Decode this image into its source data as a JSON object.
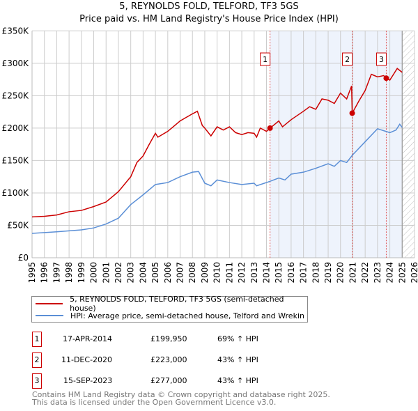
{
  "header": {
    "title": "5, REYNOLDS FOLD, TELFORD, TF3 5GS",
    "subtitle": "Price paid vs. HM Land Registry's House Price Index (HPI)"
  },
  "chart_data": {
    "type": "line",
    "title": "5, REYNOLDS FOLD, TELFORD, TF3 5GS",
    "xlim": [
      1995,
      2026
    ],
    "ylim": [
      0,
      350000
    ],
    "yticks": [
      0,
      50000,
      100000,
      150000,
      200000,
      250000,
      300000,
      350000
    ],
    "ytick_labels": [
      "£0",
      "£50K",
      "£100K",
      "£150K",
      "£200K",
      "£250K",
      "£300K",
      "£350K"
    ],
    "xticks": [
      "1995",
      "1996",
      "1997",
      "1998",
      "1999",
      "2000",
      "2001",
      "2002",
      "2003",
      "2004",
      "2005",
      "2006",
      "2007",
      "2008",
      "2009",
      "2010",
      "2011",
      "2012",
      "2013",
      "2014",
      "2015",
      "2016",
      "2017",
      "2018",
      "2019",
      "2020",
      "2021",
      "2022",
      "2023",
      "2024",
      "2025",
      "2026"
    ],
    "grid": true,
    "shaded_range": [
      2014.29,
      2025
    ],
    "hatched_range": [
      2025,
      2026
    ],
    "series": [
      {
        "name": "5, REYNOLDS FOLD, TELFORD, TF3 5GS (semi-detached house)",
        "color": "#cc0000",
        "points": [
          [
            1995,
            63
          ],
          [
            1996,
            64
          ],
          [
            1997,
            66
          ],
          [
            1998,
            71
          ],
          [
            1999,
            73
          ],
          [
            2000,
            79
          ],
          [
            2001,
            86
          ],
          [
            2002,
            102
          ],
          [
            2003,
            125
          ],
          [
            2003.5,
            147
          ],
          [
            2004,
            157
          ],
          [
            2004.5,
            175
          ],
          [
            2005,
            192
          ],
          [
            2005.2,
            186
          ],
          [
            2006,
            195
          ],
          [
            2007,
            211
          ],
          [
            2008,
            222
          ],
          [
            2008.4,
            226
          ],
          [
            2008.8,
            204
          ],
          [
            2009,
            200
          ],
          [
            2009.5,
            188
          ],
          [
            2010,
            202
          ],
          [
            2010.5,
            197
          ],
          [
            2011,
            202
          ],
          [
            2011.5,
            193
          ],
          [
            2012,
            190
          ],
          [
            2012.5,
            193
          ],
          [
            2013,
            192
          ],
          [
            2013.2,
            186
          ],
          [
            2013.5,
            200
          ],
          [
            2014,
            195
          ],
          [
            2014.29,
            199.95
          ],
          [
            2015,
            211
          ],
          [
            2015.3,
            202
          ],
          [
            2016,
            213
          ],
          [
            2017,
            226
          ],
          [
            2017.5,
            233
          ],
          [
            2018,
            229
          ],
          [
            2018.5,
            245
          ],
          [
            2019,
            243
          ],
          [
            2019.5,
            238
          ],
          [
            2020,
            254
          ],
          [
            2020.5,
            245
          ],
          [
            2020.9,
            265
          ],
          [
            2020.95,
            223
          ],
          [
            2021.5,
            242
          ],
          [
            2022,
            258
          ],
          [
            2022.5,
            283
          ],
          [
            2023,
            279
          ],
          [
            2023.5,
            281
          ],
          [
            2023.7,
            277
          ],
          [
            2024,
            274
          ],
          [
            2024.6,
            292
          ],
          [
            2025,
            286
          ]
        ]
      },
      {
        "name": "HPI: Average price, semi-detached house, Telford and Wrekin",
        "color": "#5b8fd6",
        "points": [
          [
            1995,
            37.6
          ],
          [
            1997,
            40
          ],
          [
            1999,
            43
          ],
          [
            2000,
            46
          ],
          [
            2001,
            52
          ],
          [
            2002,
            61
          ],
          [
            2003,
            82
          ],
          [
            2004,
            97
          ],
          [
            2005,
            113
          ],
          [
            2006,
            116
          ],
          [
            2007,
            125
          ],
          [
            2008,
            132
          ],
          [
            2008.5,
            133
          ],
          [
            2009,
            115
          ],
          [
            2009.5,
            111
          ],
          [
            2010,
            120
          ],
          [
            2011,
            116
          ],
          [
            2012,
            113
          ],
          [
            2013,
            115
          ],
          [
            2013.2,
            111
          ],
          [
            2014,
            116
          ],
          [
            2014.3,
            118
          ],
          [
            2015,
            123
          ],
          [
            2015.5,
            120
          ],
          [
            2016,
            129
          ],
          [
            2017,
            132
          ],
          [
            2018,
            138
          ],
          [
            2019,
            145
          ],
          [
            2019.5,
            141
          ],
          [
            2020,
            150
          ],
          [
            2020.5,
            147
          ],
          [
            2021,
            159
          ],
          [
            2022,
            179
          ],
          [
            2023,
            199
          ],
          [
            2024,
            193
          ],
          [
            2024.5,
            197
          ],
          [
            2024.8,
            206
          ],
          [
            2025,
            201
          ]
        ]
      }
    ],
    "sales": [
      {
        "label": "1",
        "x": 2014.29,
        "y": 199950
      },
      {
        "label": "2",
        "x": 2020.95,
        "y": 223000
      },
      {
        "label": "3",
        "x": 2023.71,
        "y": 277000
      }
    ]
  },
  "legend": {
    "red": "5, REYNOLDS FOLD, TELFORD, TF3 5GS (semi-detached house)",
    "blue": "HPI: Average price, semi-detached house, Telford and Wrekin"
  },
  "sales_table": [
    {
      "n": "1",
      "date": "17-APR-2014",
      "price": "£199,950",
      "hpi": "69% ↑ HPI"
    },
    {
      "n": "2",
      "date": "11-DEC-2020",
      "price": "£223,000",
      "hpi": "43% ↑ HPI"
    },
    {
      "n": "3",
      "date": "15-SEP-2023",
      "price": "£277,000",
      "hpi": "43% ↑ HPI"
    }
  ],
  "footer": {
    "line1": "Contains HM Land Registry data © Crown copyright and database right 2025.",
    "line2": "This data is licensed under the Open Government Licence v3.0."
  }
}
